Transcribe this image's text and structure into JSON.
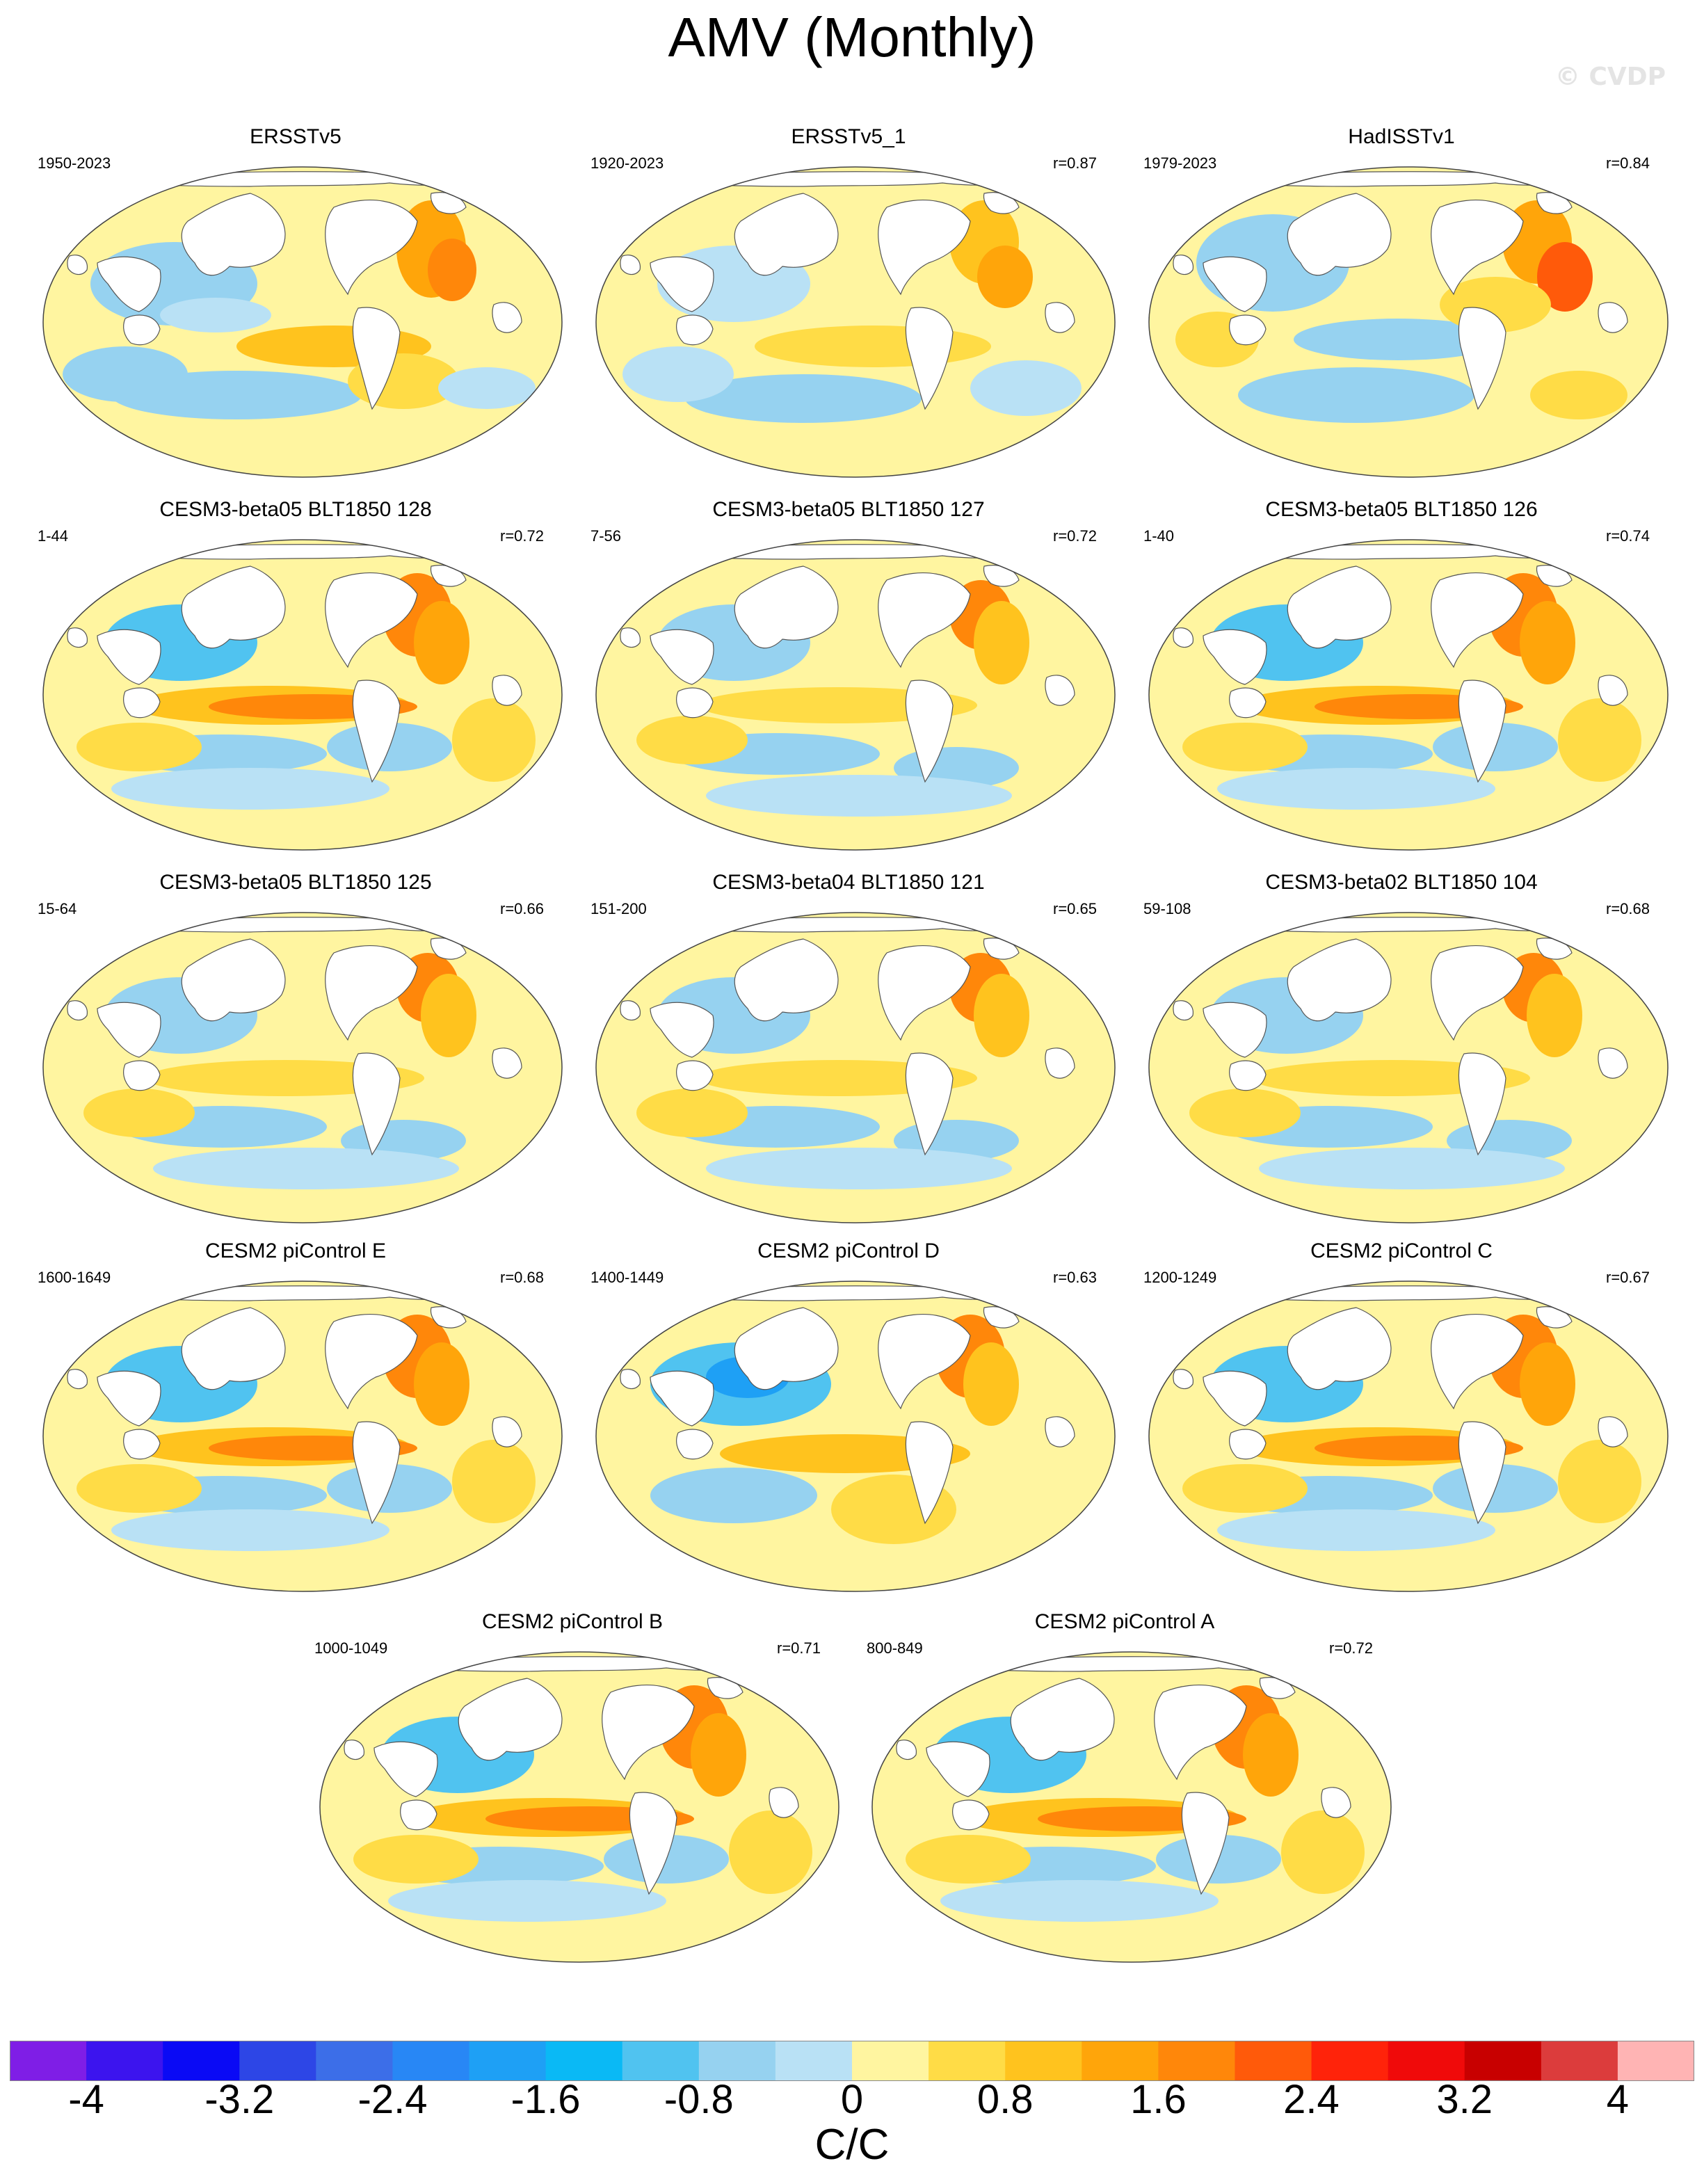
{
  "title": "AMV (Monthly)",
  "watermark": "© CVDP",
  "chart_data": {
    "type": "heatmap",
    "title": "AMV (Monthly)",
    "projection": "global map",
    "colorbar": {
      "label": "C/C",
      "levels": [
        -4,
        -3.6,
        -3.2,
        -2.8,
        -2.4,
        -2.0,
        -1.6,
        -1.2,
        -0.8,
        -0.4,
        0,
        0.4,
        0.8,
        1.2,
        1.6,
        2.0,
        2.4,
        2.8,
        3.2,
        3.6,
        4
      ],
      "tick_labels": [
        "-4",
        "-3.2",
        "-2.4",
        "-1.6",
        "-0.8",
        "0",
        "0.8",
        "1.6",
        "2.4",
        "3.2",
        "4"
      ],
      "colors": [
        "#7f1ee6",
        "#3c14ee",
        "#0a0af5",
        "#2d46e6",
        "#3c6ee8",
        "#2887f5",
        "#1ea0f5",
        "#0ab9f5",
        "#50c3f0",
        "#96d2f0",
        "#b9e1f5",
        "#fff5a0",
        "#ffdc46",
        "#ffc31e",
        "#ffa50a",
        "#ff870a",
        "#ff5a0a",
        "#ff230a",
        "#f00a0a",
        "#c80000",
        "#dc3c3c",
        "#ffb4b4"
      ]
    },
    "panels": [
      {
        "name": "ERSSTv5",
        "period": "1950-2023",
        "r": "",
        "pattern": "obs-a"
      },
      {
        "name": "ERSSTv5_1",
        "period": "1920-2023",
        "r": "r=0.87",
        "pattern": "obs-b"
      },
      {
        "name": "HadISSTv1",
        "period": "1979-2023",
        "r": "r=0.84",
        "pattern": "obs-c"
      },
      {
        "name": "CESM3-beta05 BLT1850 128",
        "period": "1-44",
        "r": "r=0.72",
        "pattern": "model-enso"
      },
      {
        "name": "CESM3-beta05 BLT1850 127",
        "period": "7-56",
        "r": "r=0.72",
        "pattern": "model-weak"
      },
      {
        "name": "CESM3-beta05 BLT1850 126",
        "period": "1-40",
        "r": "r=0.74",
        "pattern": "model-enso"
      },
      {
        "name": "CESM3-beta05 BLT1850 125",
        "period": "15-64",
        "r": "r=0.66",
        "pattern": "model-weak"
      },
      {
        "name": "CESM3-beta04 BLT1850 121",
        "period": "151-200",
        "r": "r=0.65",
        "pattern": "model-weak"
      },
      {
        "name": "CESM3-beta02 BLT1850 104",
        "period": "59-108",
        "r": "r=0.68",
        "pattern": "model-weak"
      },
      {
        "name": "CESM2 piControl E",
        "period": "1600-1649",
        "r": "r=0.68",
        "pattern": "model-enso"
      },
      {
        "name": "CESM2 piControl D",
        "period": "1400-1449",
        "r": "r=0.63",
        "pattern": "model-npac"
      },
      {
        "name": "CESM2 piControl C",
        "period": "1200-1249",
        "r": "r=0.67",
        "pattern": "model-enso"
      },
      {
        "name": "CESM2 piControl B",
        "period": "1000-1049",
        "r": "r=0.71",
        "pattern": "model-enso"
      },
      {
        "name": "CESM2 piControl A",
        "period": "800-849",
        "r": "r=0.72",
        "pattern": "model-enso"
      }
    ]
  }
}
